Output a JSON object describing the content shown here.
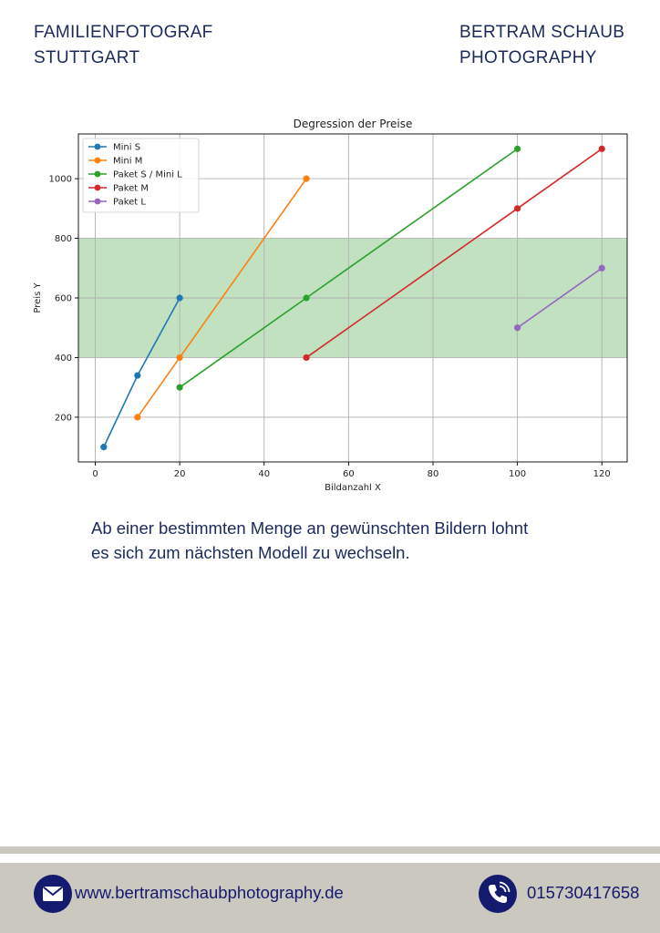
{
  "header": {
    "left_line1": "FAMILIENFOTOGRAF",
    "left_line2": "STUTTGART",
    "right_line1": "BERTRAM SCHAUB",
    "right_line2": "PHOTOGRAPHY"
  },
  "chart_data": {
    "type": "line",
    "title": "Degression der Preise",
    "xlabel": "Bildanzahl X",
    "ylabel": "Preis Y",
    "xlim": [
      -4,
      126
    ],
    "ylim": [
      50,
      1150
    ],
    "xticks": [
      0,
      20,
      40,
      60,
      80,
      100,
      120
    ],
    "yticks": [
      200,
      400,
      600,
      800,
      1000
    ],
    "grid": true,
    "legend_position": "top-left",
    "band": {
      "y_from": 400,
      "y_to": 800,
      "color": "#c1e1c1"
    },
    "series": [
      {
        "name": "Mini S",
        "color": "#1f77b4",
        "points": [
          [
            2,
            100
          ],
          [
            10,
            340
          ],
          [
            20,
            600
          ]
        ]
      },
      {
        "name": "Mini M",
        "color": "#ff7f0e",
        "points": [
          [
            10,
            200
          ],
          [
            20,
            400
          ],
          [
            50,
            1000
          ]
        ]
      },
      {
        "name": "Paket S / Mini L",
        "color": "#2ca02c",
        "points": [
          [
            20,
            300
          ],
          [
            50,
            600
          ],
          [
            100,
            1100
          ]
        ]
      },
      {
        "name": "Paket M",
        "color": "#d62728",
        "points": [
          [
            50,
            400
          ],
          [
            100,
            900
          ],
          [
            120,
            1100
          ]
        ]
      },
      {
        "name": "Paket L",
        "color": "#9467bd",
        "points": [
          [
            100,
            500
          ],
          [
            120,
            700
          ]
        ]
      }
    ]
  },
  "caption": {
    "line1": "Ab einer bestimmten Menge an gewünschten Bildern lohnt",
    "line2": "es sich zum nächsten Modell zu wechseln."
  },
  "footer": {
    "mail_icon": "mail-icon",
    "website": "www.bertramschaubphotography.de",
    "phone_icon": "phone-icon",
    "phone": "015730417658"
  }
}
